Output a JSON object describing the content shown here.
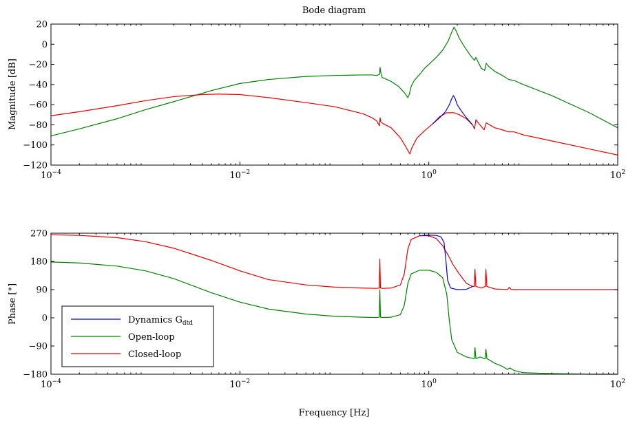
{
  "chart_data": [
    {
      "type": "line",
      "title": "Bode diagram",
      "xlabel": "",
      "ylabel": "Magnitude [dB]",
      "xscale": "log",
      "xlim": [
        0.0001,
        100
      ],
      "ylim": [
        -120,
        20
      ],
      "x_ticks": [
        {
          "base": "10",
          "exp": "−4"
        },
        {
          "base": "10",
          "exp": "−2"
        },
        {
          "base": "10",
          "exp": "0"
        },
        {
          "base": "10",
          "exp": "2"
        }
      ],
      "y_ticks": [
        "20",
        "0",
        "−20",
        "−40",
        "−60",
        "−80",
        "−100",
        "−120"
      ],
      "y_tick_values": [
        20,
        0,
        -20,
        -40,
        -60,
        -80,
        -100,
        -120
      ],
      "grid": false,
      "series": [
        {
          "name": "Open-loop",
          "color": "#008000",
          "points": [
            [
              0.0001,
              -91
            ],
            [
              0.0002,
              -84
            ],
            [
              0.0005,
              -74
            ],
            [
              0.001,
              -65
            ],
            [
              0.002,
              -57
            ],
            [
              0.005,
              -46
            ],
            [
              0.01,
              -39
            ],
            [
              0.02,
              -35
            ],
            [
              0.05,
              -32
            ],
            [
              0.1,
              -31
            ],
            [
              0.2,
              -30.5
            ],
            [
              0.25,
              -30.5
            ],
            [
              0.28,
              -31
            ],
            [
              0.3,
              -30
            ],
            [
              0.305,
              -23
            ],
            [
              0.31,
              -28
            ],
            [
              0.32,
              -33
            ],
            [
              0.34,
              -34
            ],
            [
              0.4,
              -37
            ],
            [
              0.48,
              -42
            ],
            [
              0.55,
              -48
            ],
            [
              0.6,
              -53
            ],
            [
              0.62,
              -50
            ],
            [
              0.65,
              -42
            ],
            [
              0.7,
              -36
            ],
            [
              0.8,
              -30
            ],
            [
              0.9,
              -24
            ],
            [
              1,
              -20
            ],
            [
              1.2,
              -13
            ],
            [
              1.4,
              -6
            ],
            [
              1.6,
              3
            ],
            [
              1.75,
              12
            ],
            [
              1.85,
              17
            ],
            [
              1.95,
              13
            ],
            [
              2.1,
              6
            ],
            [
              2.4,
              -3
            ],
            [
              2.8,
              -12
            ],
            [
              3.05,
              -16
            ],
            [
              3.15,
              -13
            ],
            [
              3.3,
              -17
            ],
            [
              3.6,
              -24
            ],
            [
              3.9,
              -26
            ],
            [
              4.05,
              -19
            ],
            [
              4.3,
              -22
            ],
            [
              5,
              -27
            ],
            [
              6,
              -31
            ],
            [
              7,
              -35
            ],
            [
              8,
              -36
            ],
            [
              10,
              -40
            ],
            [
              20,
              -51
            ],
            [
              50,
              -68
            ],
            [
              100,
              -83
            ]
          ]
        },
        {
          "name": "Closed-loop",
          "color": "#e60000",
          "points": [
            [
              0.0001,
              -71
            ],
            [
              0.0002,
              -67
            ],
            [
              0.0005,
              -61
            ],
            [
              0.001,
              -56
            ],
            [
              0.002,
              -52
            ],
            [
              0.004,
              -50
            ],
            [
              0.006,
              -49.5
            ],
            [
              0.01,
              -50
            ],
            [
              0.02,
              -53
            ],
            [
              0.05,
              -58
            ],
            [
              0.1,
              -62
            ],
            [
              0.2,
              -69
            ],
            [
              0.25,
              -73
            ],
            [
              0.28,
              -76
            ],
            [
              0.3,
              -81
            ],
            [
              0.305,
              -73
            ],
            [
              0.31,
              -77
            ],
            [
              0.33,
              -79
            ],
            [
              0.4,
              -83
            ],
            [
              0.5,
              -93
            ],
            [
              0.58,
              -103
            ],
            [
              0.63,
              -109
            ],
            [
              0.66,
              -103
            ],
            [
              0.75,
              -93
            ],
            [
              0.9,
              -86
            ],
            [
              1.1,
              -79
            ],
            [
              1.3,
              -72
            ],
            [
              1.55,
              -68
            ],
            [
              1.85,
              -68
            ],
            [
              2.1,
              -70
            ],
            [
              2.5,
              -74
            ],
            [
              2.9,
              -80
            ],
            [
              3.05,
              -84
            ],
            [
              3.15,
              -75
            ],
            [
              3.4,
              -79
            ],
            [
              3.85,
              -85
            ],
            [
              4.05,
              -78
            ],
            [
              4.4,
              -80
            ],
            [
              5,
              -83
            ],
            [
              6,
              -85
            ],
            [
              7,
              -87
            ],
            [
              8,
              -87
            ],
            [
              10,
              -90
            ],
            [
              20,
              -96
            ],
            [
              50,
              -104
            ],
            [
              100,
              -110
            ]
          ]
        },
        {
          "name": "Dynamics G_dtd",
          "color": "#0000e6",
          "points": [
            [
              1.1,
              -79
            ],
            [
              1.3,
              -73
            ],
            [
              1.5,
              -67
            ],
            [
              1.65,
              -60
            ],
            [
              1.75,
              -54
            ],
            [
              1.82,
              -51
            ],
            [
              1.9,
              -54
            ],
            [
              2,
              -60
            ],
            [
              2.2,
              -66
            ],
            [
              2.5,
              -73
            ],
            [
              2.9,
              -80
            ]
          ]
        }
      ]
    },
    {
      "type": "line",
      "title": "",
      "xlabel": "Frequency [Hz]",
      "ylabel": "Phase [°]",
      "xscale": "log",
      "xlim": [
        0.0001,
        100
      ],
      "ylim": [
        -180,
        270
      ],
      "x_ticks": [
        {
          "base": "10",
          "exp": "−4"
        },
        {
          "base": "10",
          "exp": "−2"
        },
        {
          "base": "10",
          "exp": "0"
        },
        {
          "base": "10",
          "exp": "2"
        }
      ],
      "y_ticks": [
        "270",
        "180",
        "90",
        "0",
        "−90",
        "−180"
      ],
      "y_tick_values": [
        270,
        180,
        90,
        0,
        -90,
        -180
      ],
      "grid": false,
      "legend_position": "lower-left",
      "legend": {
        "dynamics_text": "Dynamics G",
        "dynamics_sub": "dtd",
        "open_loop": "Open-loop",
        "closed_loop": "Closed-loop"
      },
      "series": [
        {
          "name": "Open-loop",
          "color": "#008000",
          "points": [
            [
              0.0001,
              178
            ],
            [
              0.0002,
              175
            ],
            [
              0.0005,
              165
            ],
            [
              0.001,
              150
            ],
            [
              0.002,
              125
            ],
            [
              0.005,
              80
            ],
            [
              0.01,
              50
            ],
            [
              0.02,
              28
            ],
            [
              0.05,
              12
            ],
            [
              0.1,
              5
            ],
            [
              0.2,
              2
            ],
            [
              0.28,
              1
            ],
            [
              0.298,
              2
            ],
            [
              0.303,
              90
            ],
            [
              0.308,
              2
            ],
            [
              0.32,
              1
            ],
            [
              0.4,
              2
            ],
            [
              0.5,
              10
            ],
            [
              0.55,
              40
            ],
            [
              0.6,
              110
            ],
            [
              0.65,
              140
            ],
            [
              0.8,
              152
            ],
            [
              1,
              152
            ],
            [
              1.2,
              145
            ],
            [
              1.4,
              128
            ],
            [
              1.55,
              75
            ],
            [
              1.65,
              -10
            ],
            [
              1.75,
              -70
            ],
            [
              2,
              -110
            ],
            [
              2.5,
              -125
            ],
            [
              2.95,
              -130
            ],
            [
              3.02,
              -130
            ],
            [
              3.08,
              -95
            ],
            [
              3.15,
              -130
            ],
            [
              3.5,
              -125
            ],
            [
              3.85,
              -130
            ],
            [
              3.95,
              -130
            ],
            [
              4.02,
              -100
            ],
            [
              4.12,
              -130
            ],
            [
              5,
              -145
            ],
            [
              6,
              -155
            ],
            [
              6.8,
              -165
            ],
            [
              7.2,
              -160
            ],
            [
              8,
              -168
            ],
            [
              10,
              -175
            ],
            [
              20,
              -178
            ],
            [
              50,
              -180
            ],
            [
              100,
              -180
            ]
          ]
        },
        {
          "name": "Closed-loop",
          "color": "#e60000",
          "points": [
            [
              0.0001,
              265
            ],
            [
              0.0002,
              263
            ],
            [
              0.0005,
              256
            ],
            [
              0.001,
              243
            ],
            [
              0.002,
              222
            ],
            [
              0.005,
              183
            ],
            [
              0.01,
              150
            ],
            [
              0.02,
              122
            ],
            [
              0.05,
              105
            ],
            [
              0.1,
              98
            ],
            [
              0.2,
              95
            ],
            [
              0.28,
              94
            ],
            [
              0.298,
              95
            ],
            [
              0.303,
              188
            ],
            [
              0.308,
              95
            ],
            [
              0.32,
              94
            ],
            [
              0.4,
              95
            ],
            [
              0.5,
              105
            ],
            [
              0.55,
              140
            ],
            [
              0.6,
              220
            ],
            [
              0.65,
              250
            ],
            [
              0.8,
              262
            ],
            [
              1,
              262
            ],
            [
              1.2,
              253
            ],
            [
              1.4,
              230
            ],
            [
              1.6,
              200
            ],
            [
              1.8,
              170
            ],
            [
              2.1,
              140
            ],
            [
              2.5,
              110
            ],
            [
              2.9,
              100
            ],
            [
              3.02,
              100
            ],
            [
              3.08,
              155
            ],
            [
              3.15,
              100
            ],
            [
              3.6,
              95
            ],
            [
              3.95,
              100
            ],
            [
              4.02,
              155
            ],
            [
              4.12,
              100
            ],
            [
              5,
              92
            ],
            [
              6,
              91
            ],
            [
              6.8,
              90
            ],
            [
              7.1,
              97
            ],
            [
              7.4,
              91
            ],
            [
              8,
              90
            ],
            [
              10,
              90
            ],
            [
              20,
              90
            ],
            [
              50,
              90
            ],
            [
              100,
              90
            ]
          ]
        },
        {
          "name": "Dynamics G_dtd",
          "color": "#0000e6",
          "points": [
            [
              0.8,
              262
            ],
            [
              1,
              264
            ],
            [
              1.2,
              263
            ],
            [
              1.35,
              258
            ],
            [
              1.45,
              240
            ],
            [
              1.52,
              180
            ],
            [
              1.58,
              120
            ],
            [
              1.7,
              95
            ],
            [
              2,
              90
            ],
            [
              2.5,
              91
            ],
            [
              2.9,
              100
            ]
          ]
        }
      ]
    }
  ]
}
